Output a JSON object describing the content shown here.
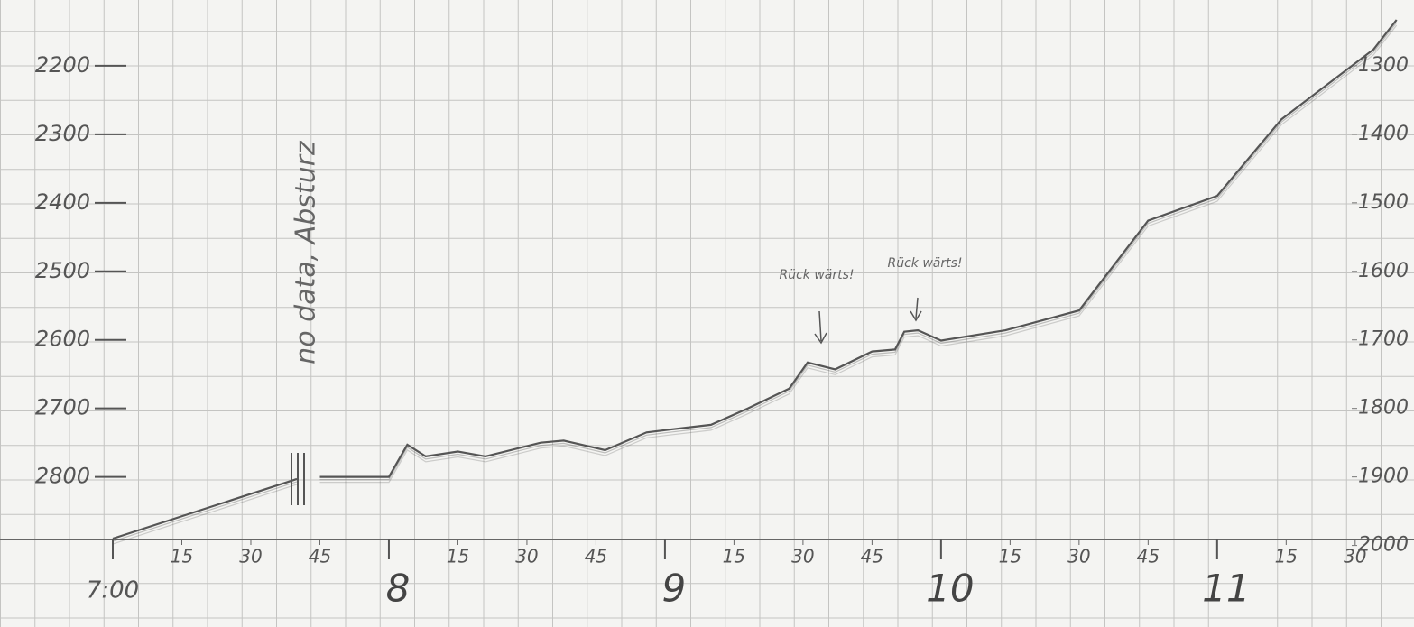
{
  "chart_data": {
    "type": "line",
    "x": [
      0,
      40,
      42,
      45,
      60,
      64,
      68,
      75,
      81,
      93,
      98,
      107,
      116,
      121,
      130,
      138,
      147,
      151,
      157,
      165,
      170,
      172,
      175,
      180,
      194,
      210,
      225,
      240,
      254,
      274,
      279
    ],
    "values": [
      2890,
      2803,
      null,
      2800,
      2800,
      2753,
      2770,
      2763,
      2770,
      2750,
      2747,
      2761,
      2735,
      2731,
      2724,
      2700,
      2671,
      2633,
      2643,
      2617,
      2614,
      2588,
      2586,
      2601,
      2586,
      2557,
      2426,
      2390,
      2278,
      2176,
      2133
    ],
    "color": "#555555",
    "xlim": [
      0,
      282
    ],
    "xticks": [
      15,
      30,
      {
        "value": 45,
        "label": "45"
      },
      {
        "value": 75,
        "label": "15"
      },
      {
        "value": 90,
        "label": "30"
      },
      {
        "value": 105,
        "label": "45"
      },
      {
        "value": 135,
        "label": "15"
      },
      {
        "value": 150,
        "label": "30"
      },
      {
        "value": 165,
        "label": "45"
      },
      {
        "value": 195,
        "label": "15"
      },
      {
        "value": 210,
        "label": "30"
      },
      {
        "value": 225,
        "label": "45"
      },
      {
        "value": 255,
        "label": "15"
      },
      {
        "value": 270,
        "label": "30"
      }
    ],
    "hour_ticks": [
      {
        "value": 0,
        "label": "7:00"
      },
      {
        "value": 60,
        "label": "8"
      },
      {
        "value": 120,
        "label": "9"
      },
      {
        "value": 180,
        "label": "10"
      },
      {
        "value": 240,
        "label": "11"
      }
    ],
    "ylim": [
      2890,
      2104
    ],
    "yticks": [
      2200,
      2300,
      2400,
      2500,
      2600,
      2700,
      2800
    ],
    "y2lim": [
      1990,
      1204
    ],
    "y2ticks": [
      1300,
      1400,
      1500,
      1600,
      1700,
      1800,
      1900,
      2000
    ],
    "annotations": [
      "no data, Absturz",
      "Rück wärts!",
      "Rück wärts!"
    ]
  }
}
